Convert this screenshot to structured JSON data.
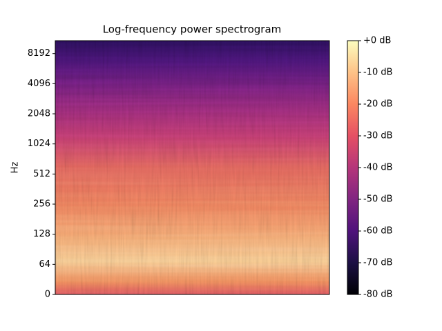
{
  "chart_data": {
    "type": "spectrogram",
    "title": "Log-frequency power spectrogram",
    "y_label": "Hz",
    "yscale": "symlog",
    "linthresh": 64,
    "ylim": [
      0,
      11025
    ],
    "yticks": [
      0,
      64,
      128,
      256,
      512,
      1024,
      2048,
      4096,
      8192
    ],
    "colormap": "magma",
    "colorbar": {
      "clim": [
        -80,
        0
      ],
      "ticks": [
        {
          "value": 0,
          "label": "+0 dB"
        },
        {
          "value": -10,
          "label": "-10 dB"
        },
        {
          "value": -20,
          "label": "-20 dB"
        },
        {
          "value": -30,
          "label": "-30 dB"
        },
        {
          "value": -40,
          "label": "-40 dB"
        },
        {
          "value": -50,
          "label": "-50 dB"
        },
        {
          "value": -60,
          "label": "-60 dB"
        },
        {
          "value": -70,
          "label": "-70 dB"
        },
        {
          "value": -80,
          "label": "-80 dB"
        }
      ]
    }
  }
}
